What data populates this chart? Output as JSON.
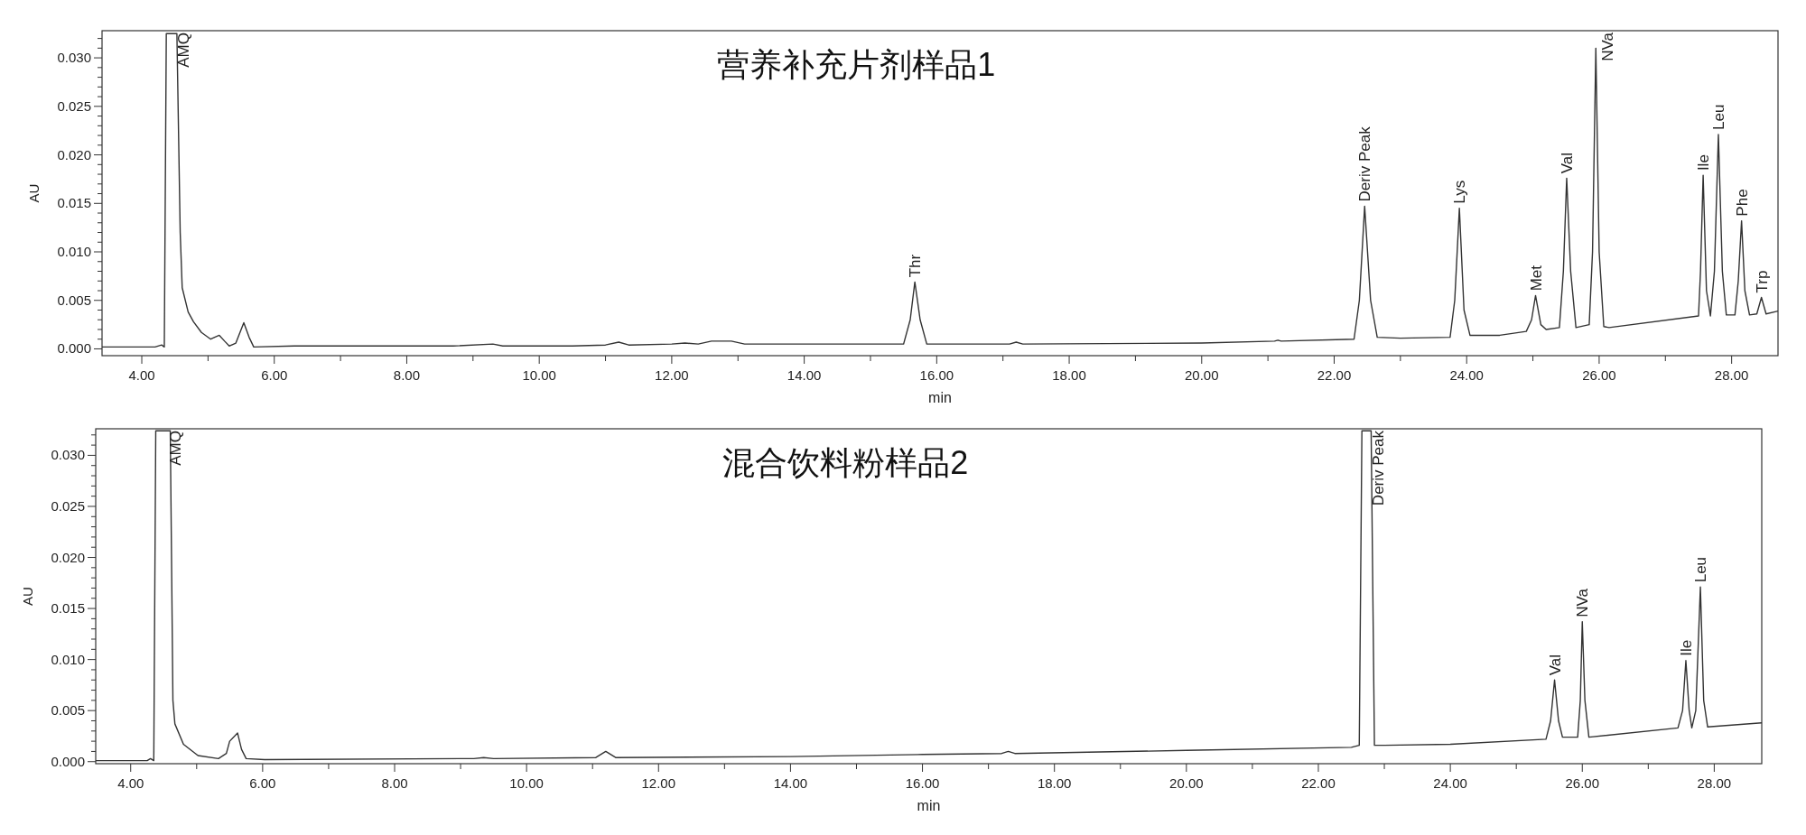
{
  "chart_data": [
    {
      "type": "line",
      "title": "营养补充片剂样品1",
      "xlabel": "min",
      "ylabel": "AU",
      "xlim": [
        3.4,
        28.7
      ],
      "ylim": [
        -0.0007,
        0.0328
      ],
      "xticks": [
        {
          "value": 4,
          "label": "4.00"
        },
        {
          "value": 5,
          "label": null
        },
        {
          "value": 6,
          "label": "6.00"
        },
        {
          "value": 7,
          "label": null
        },
        {
          "value": 8,
          "label": "8.00"
        },
        {
          "value": 9,
          "label": null
        },
        {
          "value": 10,
          "label": "10.00"
        },
        {
          "value": 11,
          "label": null
        },
        {
          "value": 12,
          "label": "12.00"
        },
        {
          "value": 13,
          "label": null
        },
        {
          "value": 14,
          "label": "14.00"
        },
        {
          "value": 15,
          "label": null
        },
        {
          "value": 16,
          "label": "16.00"
        },
        {
          "value": 17,
          "label": null
        },
        {
          "value": 18,
          "label": "18.00"
        },
        {
          "value": 19,
          "label": null
        },
        {
          "value": 20,
          "label": "20.00"
        },
        {
          "value": 21,
          "label": null
        },
        {
          "value": 22,
          "label": "22.00"
        },
        {
          "value": 23,
          "label": null
        },
        {
          "value": 24,
          "label": "24.00"
        },
        {
          "value": 25,
          "label": null
        },
        {
          "value": 26,
          "label": "26.00"
        },
        {
          "value": 27,
          "label": null
        },
        {
          "value": 28,
          "label": "28.00"
        }
      ],
      "yticks": [
        {
          "value": 0,
          "label": "0.000"
        },
        {
          "value": 0.001,
          "label": null
        },
        {
          "value": 0.002,
          "label": null
        },
        {
          "value": 0.003,
          "label": null
        },
        {
          "value": 0.004,
          "label": null
        },
        {
          "value": 0.005,
          "label": "0.005"
        },
        {
          "value": 0.006,
          "label": null
        },
        {
          "value": 0.007,
          "label": null
        },
        {
          "value": 0.008,
          "label": null
        },
        {
          "value": 0.009,
          "label": null
        },
        {
          "value": 0.01,
          "label": "0.010"
        },
        {
          "value": 0.011,
          "label": null
        },
        {
          "value": 0.012,
          "label": null
        },
        {
          "value": 0.013,
          "label": null
        },
        {
          "value": 0.014,
          "label": null
        },
        {
          "value": 0.015,
          "label": "0.015"
        },
        {
          "value": 0.016,
          "label": null
        },
        {
          "value": 0.017,
          "label": null
        },
        {
          "value": 0.018,
          "label": null
        },
        {
          "value": 0.019,
          "label": null
        },
        {
          "value": 0.02,
          "label": "0.020"
        },
        {
          "value": 0.021,
          "label": null
        },
        {
          "value": 0.022,
          "label": null
        },
        {
          "value": 0.023,
          "label": null
        },
        {
          "value": 0.024,
          "label": null
        },
        {
          "value": 0.025,
          "label": "0.025"
        },
        {
          "value": 0.026,
          "label": null
        },
        {
          "value": 0.027,
          "label": null
        },
        {
          "value": 0.028,
          "label": null
        },
        {
          "value": 0.029,
          "label": null
        },
        {
          "value": 0.03,
          "label": "0.030"
        },
        {
          "value": 0.031,
          "label": null
        },
        {
          "value": 0.032,
          "label": null
        }
      ],
      "series": [
        {
          "color": "#333333",
          "x": [
            3.4,
            4.2,
            4.3,
            4.34,
            4.37,
            4.53,
            4.58,
            4.61,
            4.7,
            4.78,
            4.9,
            5.04,
            5.1,
            5.17,
            5.25,
            5.32,
            5.42,
            5.54,
            5.62,
            5.69,
            6.3,
            8.7,
            9.3,
            9.45,
            10.5,
            11.0,
            11.2,
            11.35,
            12.0,
            12.2,
            12.4,
            12.6,
            12.9,
            13.1,
            15.5,
            15.6,
            15.67,
            15.75,
            15.85,
            17.1,
            17.2,
            17.3,
            20.0,
            21.1,
            21.15,
            21.2,
            22.3,
            22.38,
            22.46,
            22.55,
            22.65,
            23.0,
            23.75,
            23.82,
            23.89,
            23.96,
            24.05,
            24.5,
            24.9,
            24.98,
            25.04,
            25.12,
            25.2,
            25.4,
            25.46,
            25.51,
            25.57,
            25.65,
            25.85,
            25.9,
            25.95,
            26.0,
            26.07,
            26.15,
            27.5,
            27.53,
            27.57,
            27.62,
            27.68,
            27.74,
            27.8,
            27.86,
            27.92,
            28.05,
            28.1,
            28.15,
            28.2,
            28.27,
            28.38,
            28.45,
            28.52,
            28.7
          ],
          "values": [
            0.0002,
            0.0002,
            0.0004,
            0.0002,
            0.0325,
            0.0325,
            0.012,
            0.0063,
            0.0038,
            0.0028,
            0.0017,
            0.001,
            0.0012,
            0.0014,
            0.0008,
            0.0003,
            0.0006,
            0.0027,
            0.0012,
            0.0002,
            0.0003,
            0.0003,
            0.0005,
            0.0003,
            0.0003,
            0.0004,
            0.0007,
            0.0004,
            0.0005,
            0.0006,
            0.0005,
            0.0008,
            0.0008,
            0.0005,
            0.0005,
            0.003,
            0.0069,
            0.003,
            0.0005,
            0.0005,
            0.0007,
            0.0005,
            0.0006,
            0.0008,
            0.0009,
            0.0008,
            0.001,
            0.005,
            0.0147,
            0.005,
            0.0012,
            0.0011,
            0.0012,
            0.005,
            0.0145,
            0.004,
            0.0014,
            0.0014,
            0.0018,
            0.003,
            0.0055,
            0.0025,
            0.002,
            0.0022,
            0.008,
            0.0176,
            0.008,
            0.0022,
            0.0025,
            0.01,
            0.031,
            0.01,
            0.0023,
            0.0022,
            0.0034,
            0.008,
            0.0179,
            0.006,
            0.0034,
            0.008,
            0.0221,
            0.008,
            0.0035,
            0.0035,
            0.007,
            0.0132,
            0.006,
            0.0035,
            0.0036,
            0.0053,
            0.0036,
            0.0039
          ]
        }
      ],
      "annotations": [
        {
          "text": "AMQ",
          "x": 4.45,
          "y": 0.0325
        },
        {
          "text": "Thr",
          "x": 15.67,
          "y": 0.0069
        },
        {
          "text": "Deriv Peak",
          "x": 22.46,
          "y": 0.0147
        },
        {
          "text": "Lys",
          "x": 23.89,
          "y": 0.0145
        },
        {
          "text": "Met",
          "x": 25.04,
          "y": 0.0055
        },
        {
          "text": "Val",
          "x": 25.51,
          "y": 0.0176
        },
        {
          "text": "NVa",
          "x": 25.95,
          "y": 0.031
        },
        {
          "text": "Ile",
          "x": 27.57,
          "y": 0.0179
        },
        {
          "text": "Leu",
          "x": 27.8,
          "y": 0.0221
        },
        {
          "text": "Phe",
          "x": 28.15,
          "y": 0.0132
        },
        {
          "text": "Trp",
          "x": 28.45,
          "y": 0.0053
        }
      ]
    },
    {
      "type": "line",
      "title": "混合饮料粉样品2",
      "xlabel": "min",
      "ylabel": "AU",
      "xlim": [
        3.47,
        28.72
      ],
      "ylim": [
        -0.0002,
        0.0326
      ],
      "xticks": [
        {
          "value": 4,
          "label": "4.00"
        },
        {
          "value": 5,
          "label": null
        },
        {
          "value": 6,
          "label": "6.00"
        },
        {
          "value": 7,
          "label": null
        },
        {
          "value": 8,
          "label": "8.00"
        },
        {
          "value": 9,
          "label": null
        },
        {
          "value": 10,
          "label": "10.00"
        },
        {
          "value": 11,
          "label": null
        },
        {
          "value": 12,
          "label": "12.00"
        },
        {
          "value": 13,
          "label": null
        },
        {
          "value": 14,
          "label": "14.00"
        },
        {
          "value": 15,
          "label": null
        },
        {
          "value": 16,
          "label": "16.00"
        },
        {
          "value": 17,
          "label": null
        },
        {
          "value": 18,
          "label": "18.00"
        },
        {
          "value": 19,
          "label": null
        },
        {
          "value": 20,
          "label": "20.00"
        },
        {
          "value": 21,
          "label": null
        },
        {
          "value": 22,
          "label": "22.00"
        },
        {
          "value": 23,
          "label": null
        },
        {
          "value": 24,
          "label": "24.00"
        },
        {
          "value": 25,
          "label": null
        },
        {
          "value": 26,
          "label": "26.00"
        },
        {
          "value": 27,
          "label": null
        },
        {
          "value": 28,
          "label": "28.00"
        }
      ],
      "yticks": [
        {
          "value": 0,
          "label": "0.000"
        },
        {
          "value": 0.001,
          "label": null
        },
        {
          "value": 0.002,
          "label": null
        },
        {
          "value": 0.003,
          "label": null
        },
        {
          "value": 0.004,
          "label": null
        },
        {
          "value": 0.005,
          "label": "0.005"
        },
        {
          "value": 0.006,
          "label": null
        },
        {
          "value": 0.007,
          "label": null
        },
        {
          "value": 0.008,
          "label": null
        },
        {
          "value": 0.009,
          "label": null
        },
        {
          "value": 0.01,
          "label": "0.010"
        },
        {
          "value": 0.011,
          "label": null
        },
        {
          "value": 0.012,
          "label": null
        },
        {
          "value": 0.013,
          "label": null
        },
        {
          "value": 0.014,
          "label": null
        },
        {
          "value": 0.015,
          "label": "0.015"
        },
        {
          "value": 0.016,
          "label": null
        },
        {
          "value": 0.017,
          "label": null
        },
        {
          "value": 0.018,
          "label": null
        },
        {
          "value": 0.019,
          "label": null
        },
        {
          "value": 0.02,
          "label": "0.020"
        },
        {
          "value": 0.021,
          "label": null
        },
        {
          "value": 0.022,
          "label": null
        },
        {
          "value": 0.023,
          "label": null
        },
        {
          "value": 0.024,
          "label": null
        },
        {
          "value": 0.025,
          "label": "0.025"
        },
        {
          "value": 0.026,
          "label": null
        },
        {
          "value": 0.027,
          "label": null
        },
        {
          "value": 0.028,
          "label": null
        },
        {
          "value": 0.029,
          "label": null
        },
        {
          "value": 0.03,
          "label": "0.030"
        },
        {
          "value": 0.031,
          "label": null
        },
        {
          "value": 0.032,
          "label": null
        }
      ],
      "series": [
        {
          "color": "#333333",
          "x": [
            3.47,
            4.25,
            4.3,
            4.35,
            4.38,
            4.6,
            4.64,
            4.67,
            4.8,
            5.02,
            5.33,
            5.45,
            5.5,
            5.62,
            5.68,
            5.75,
            6.03,
            9.2,
            9.35,
            9.5,
            11.05,
            11.2,
            11.35,
            14.0,
            16.0,
            17.2,
            17.3,
            17.4,
            20.0,
            22.5,
            22.62,
            22.66,
            22.8,
            22.85,
            23.0,
            24.0,
            25.45,
            25.52,
            25.58,
            25.64,
            25.7,
            25.93,
            25.97,
            26.0,
            26.04,
            26.1,
            27.45,
            27.52,
            27.57,
            27.62,
            27.66,
            27.72,
            27.79,
            27.84,
            27.9,
            28.72
          ],
          "values": [
            0.0001,
            0.0001,
            0.0003,
            0.0001,
            0.0324,
            0.0324,
            0.006,
            0.0037,
            0.0017,
            0.0006,
            0.0003,
            0.0008,
            0.002,
            0.0028,
            0.0012,
            0.0003,
            0.0002,
            0.0003,
            0.0004,
            0.0003,
            0.0004,
            0.001,
            0.0004,
            0.0005,
            0.0007,
            0.0008,
            0.001,
            0.0008,
            0.0011,
            0.0014,
            0.0016,
            0.0324,
            0.0324,
            0.0016,
            0.0016,
            0.0017,
            0.0022,
            0.004,
            0.008,
            0.004,
            0.0024,
            0.0024,
            0.006,
            0.0137,
            0.006,
            0.0024,
            0.0033,
            0.005,
            0.0099,
            0.005,
            0.0033,
            0.005,
            0.0171,
            0.006,
            0.0034,
            0.0038
          ]
        }
      ],
      "annotations": [
        {
          "text": "AMQ",
          "x": 4.49,
          "y": 0.0324
        },
        {
          "text": "Deriv Peak",
          "x": 22.73,
          "y": 0.0324
        },
        {
          "text": "Val",
          "x": 25.58,
          "y": 0.008
        },
        {
          "text": "NVa",
          "x": 26.0,
          "y": 0.0137
        },
        {
          "text": "Ile",
          "x": 27.57,
          "y": 0.0099
        },
        {
          "text": "Leu",
          "x": 27.79,
          "y": 0.0171
        }
      ]
    }
  ]
}
